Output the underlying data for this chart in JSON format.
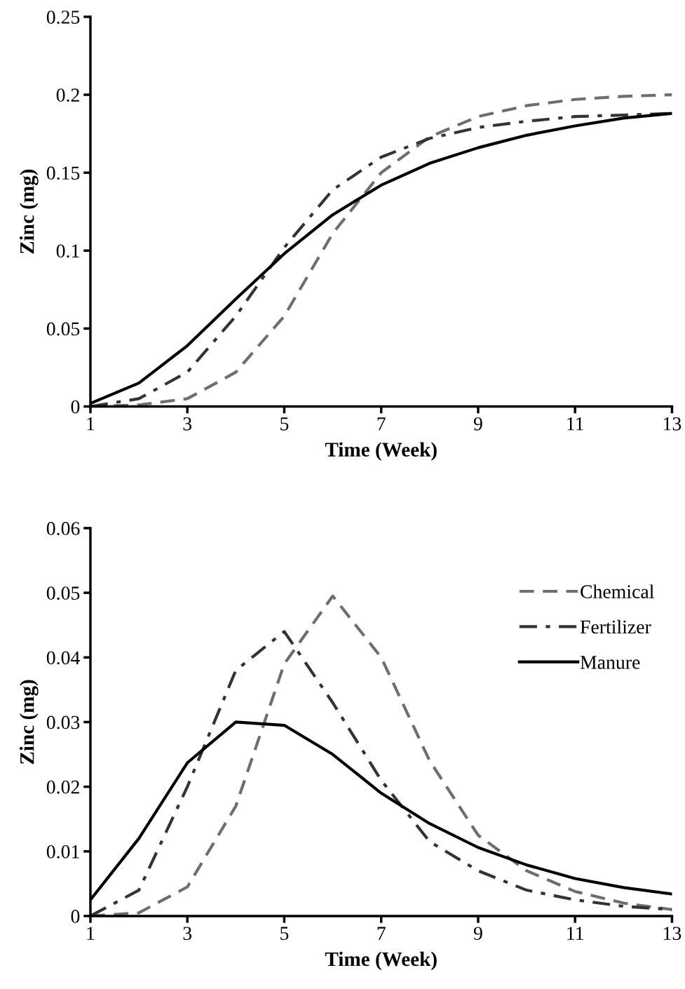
{
  "chart_data": [
    {
      "type": "line",
      "xlabel": "Time (Week)",
      "ylabel": "Zinc (mg)",
      "x": [
        1,
        2,
        3,
        4,
        5,
        6,
        7,
        8,
        9,
        10,
        11,
        12,
        13
      ],
      "xlim": [
        1,
        13
      ],
      "xticks": [
        1,
        3,
        5,
        7,
        9,
        11,
        13
      ],
      "ylim": [
        0,
        0.25
      ],
      "yticks": [
        0,
        0.05,
        0.1,
        0.15,
        0.2,
        0.25
      ],
      "grid": false,
      "legend": false,
      "series": [
        {
          "color": "#6e6e6e",
          "line_style": "dashed",
          "values": [
            0.0,
            0.001,
            0.005,
            0.022,
            0.058,
            0.111,
            0.15,
            0.173,
            0.186,
            0.193,
            0.197,
            0.199,
            0.2
          ]
        },
        {
          "color": "#333333",
          "line_style": "dashdot",
          "values": [
            0.0,
            0.005,
            0.022,
            0.058,
            0.102,
            0.139,
            0.16,
            0.172,
            0.179,
            0.183,
            0.186,
            0.187,
            0.188
          ]
        },
        {
          "color": "#000000",
          "line_style": "solid",
          "values": [
            0.002,
            0.015,
            0.039,
            0.069,
            0.098,
            0.123,
            0.142,
            0.156,
            0.166,
            0.174,
            0.18,
            0.185,
            0.188
          ]
        }
      ]
    },
    {
      "type": "line",
      "xlabel": "Time (Week)",
      "ylabel": "Zinc (mg)",
      "x": [
        1,
        2,
        3,
        4,
        5,
        6,
        7,
        8,
        9,
        10,
        11,
        12,
        13
      ],
      "xlim": [
        1,
        13
      ],
      "xticks": [
        1,
        3,
        5,
        7,
        9,
        11,
        13
      ],
      "ylim": [
        0,
        0.06
      ],
      "yticks": [
        0,
        0.01,
        0.02,
        0.03,
        0.04,
        0.05,
        0.06
      ],
      "grid": false,
      "legend": "top right",
      "series": [
        {
          "name": "Chemical",
          "color": "#6e6e6e",
          "line_style": "dashed",
          "values": [
            0.0,
            0.0005,
            0.0045,
            0.017,
            0.039,
            0.0495,
            0.04,
            0.024,
            0.0125,
            0.007,
            0.0038,
            0.002,
            0.001
          ]
        },
        {
          "name": "Fertilizer",
          "color": "#333333",
          "line_style": "dashdot",
          "values": [
            0.0,
            0.004,
            0.02,
            0.038,
            0.044,
            0.033,
            0.021,
            0.0115,
            0.007,
            0.004,
            0.0025,
            0.0015,
            0.001
          ]
        },
        {
          "name": "Manure",
          "color": "#000000",
          "line_style": "solid",
          "values": [
            0.0025,
            0.012,
            0.0237,
            0.03,
            0.0295,
            0.025,
            0.019,
            0.0143,
            0.0106,
            0.0079,
            0.0058,
            0.0044,
            0.0034
          ]
        }
      ]
    }
  ]
}
